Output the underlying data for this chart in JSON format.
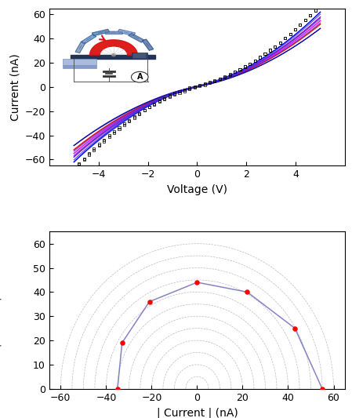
{
  "top_panel": {
    "xlabel": "Voltage (V)",
    "ylabel": "Current (nA)",
    "xlim": [
      -6,
      6
    ],
    "ylim": [
      -65,
      65
    ],
    "xticks": [
      -4,
      -2,
      0,
      2,
      4
    ],
    "yticks": [
      -60,
      -40,
      -20,
      0,
      20,
      40,
      60
    ]
  },
  "bottom_panel": {
    "xlabel": "| Current | (nA)",
    "ylabel": "| Current | (nA)",
    "xlim": [
      -65,
      65
    ],
    "ylim": [
      0,
      65
    ],
    "xticks": [
      -60,
      -40,
      -20,
      0,
      20,
      40,
      60
    ],
    "yticks": [
      0,
      10,
      20,
      30,
      40,
      50,
      60
    ],
    "semicircle_radii": [
      5,
      10,
      15,
      20,
      25,
      30,
      35,
      40,
      45,
      50,
      55,
      60
    ],
    "data_points_x": [
      -35,
      -33,
      -21,
      0,
      22,
      43,
      55
    ],
    "data_points_y": [
      0,
      19,
      36,
      44,
      40,
      25,
      0
    ],
    "line_color": "#7777bb",
    "dot_color": "#ff0000",
    "semicircle_color": "#999999"
  },
  "iv_curves": {
    "colors": [
      "#000000",
      "#0000ff",
      "#9900cc",
      "#ff00ff",
      "#ff0000",
      "#0000aa"
    ],
    "has_markers": [
      true,
      false,
      false,
      false,
      false,
      false
    ],
    "scales": [
      1.15,
      1.05,
      0.98,
      0.93,
      0.88,
      0.82
    ],
    "hysteresis": [
      0.8,
      0.6,
      0.5,
      0.4,
      0.35,
      0.3
    ]
  }
}
